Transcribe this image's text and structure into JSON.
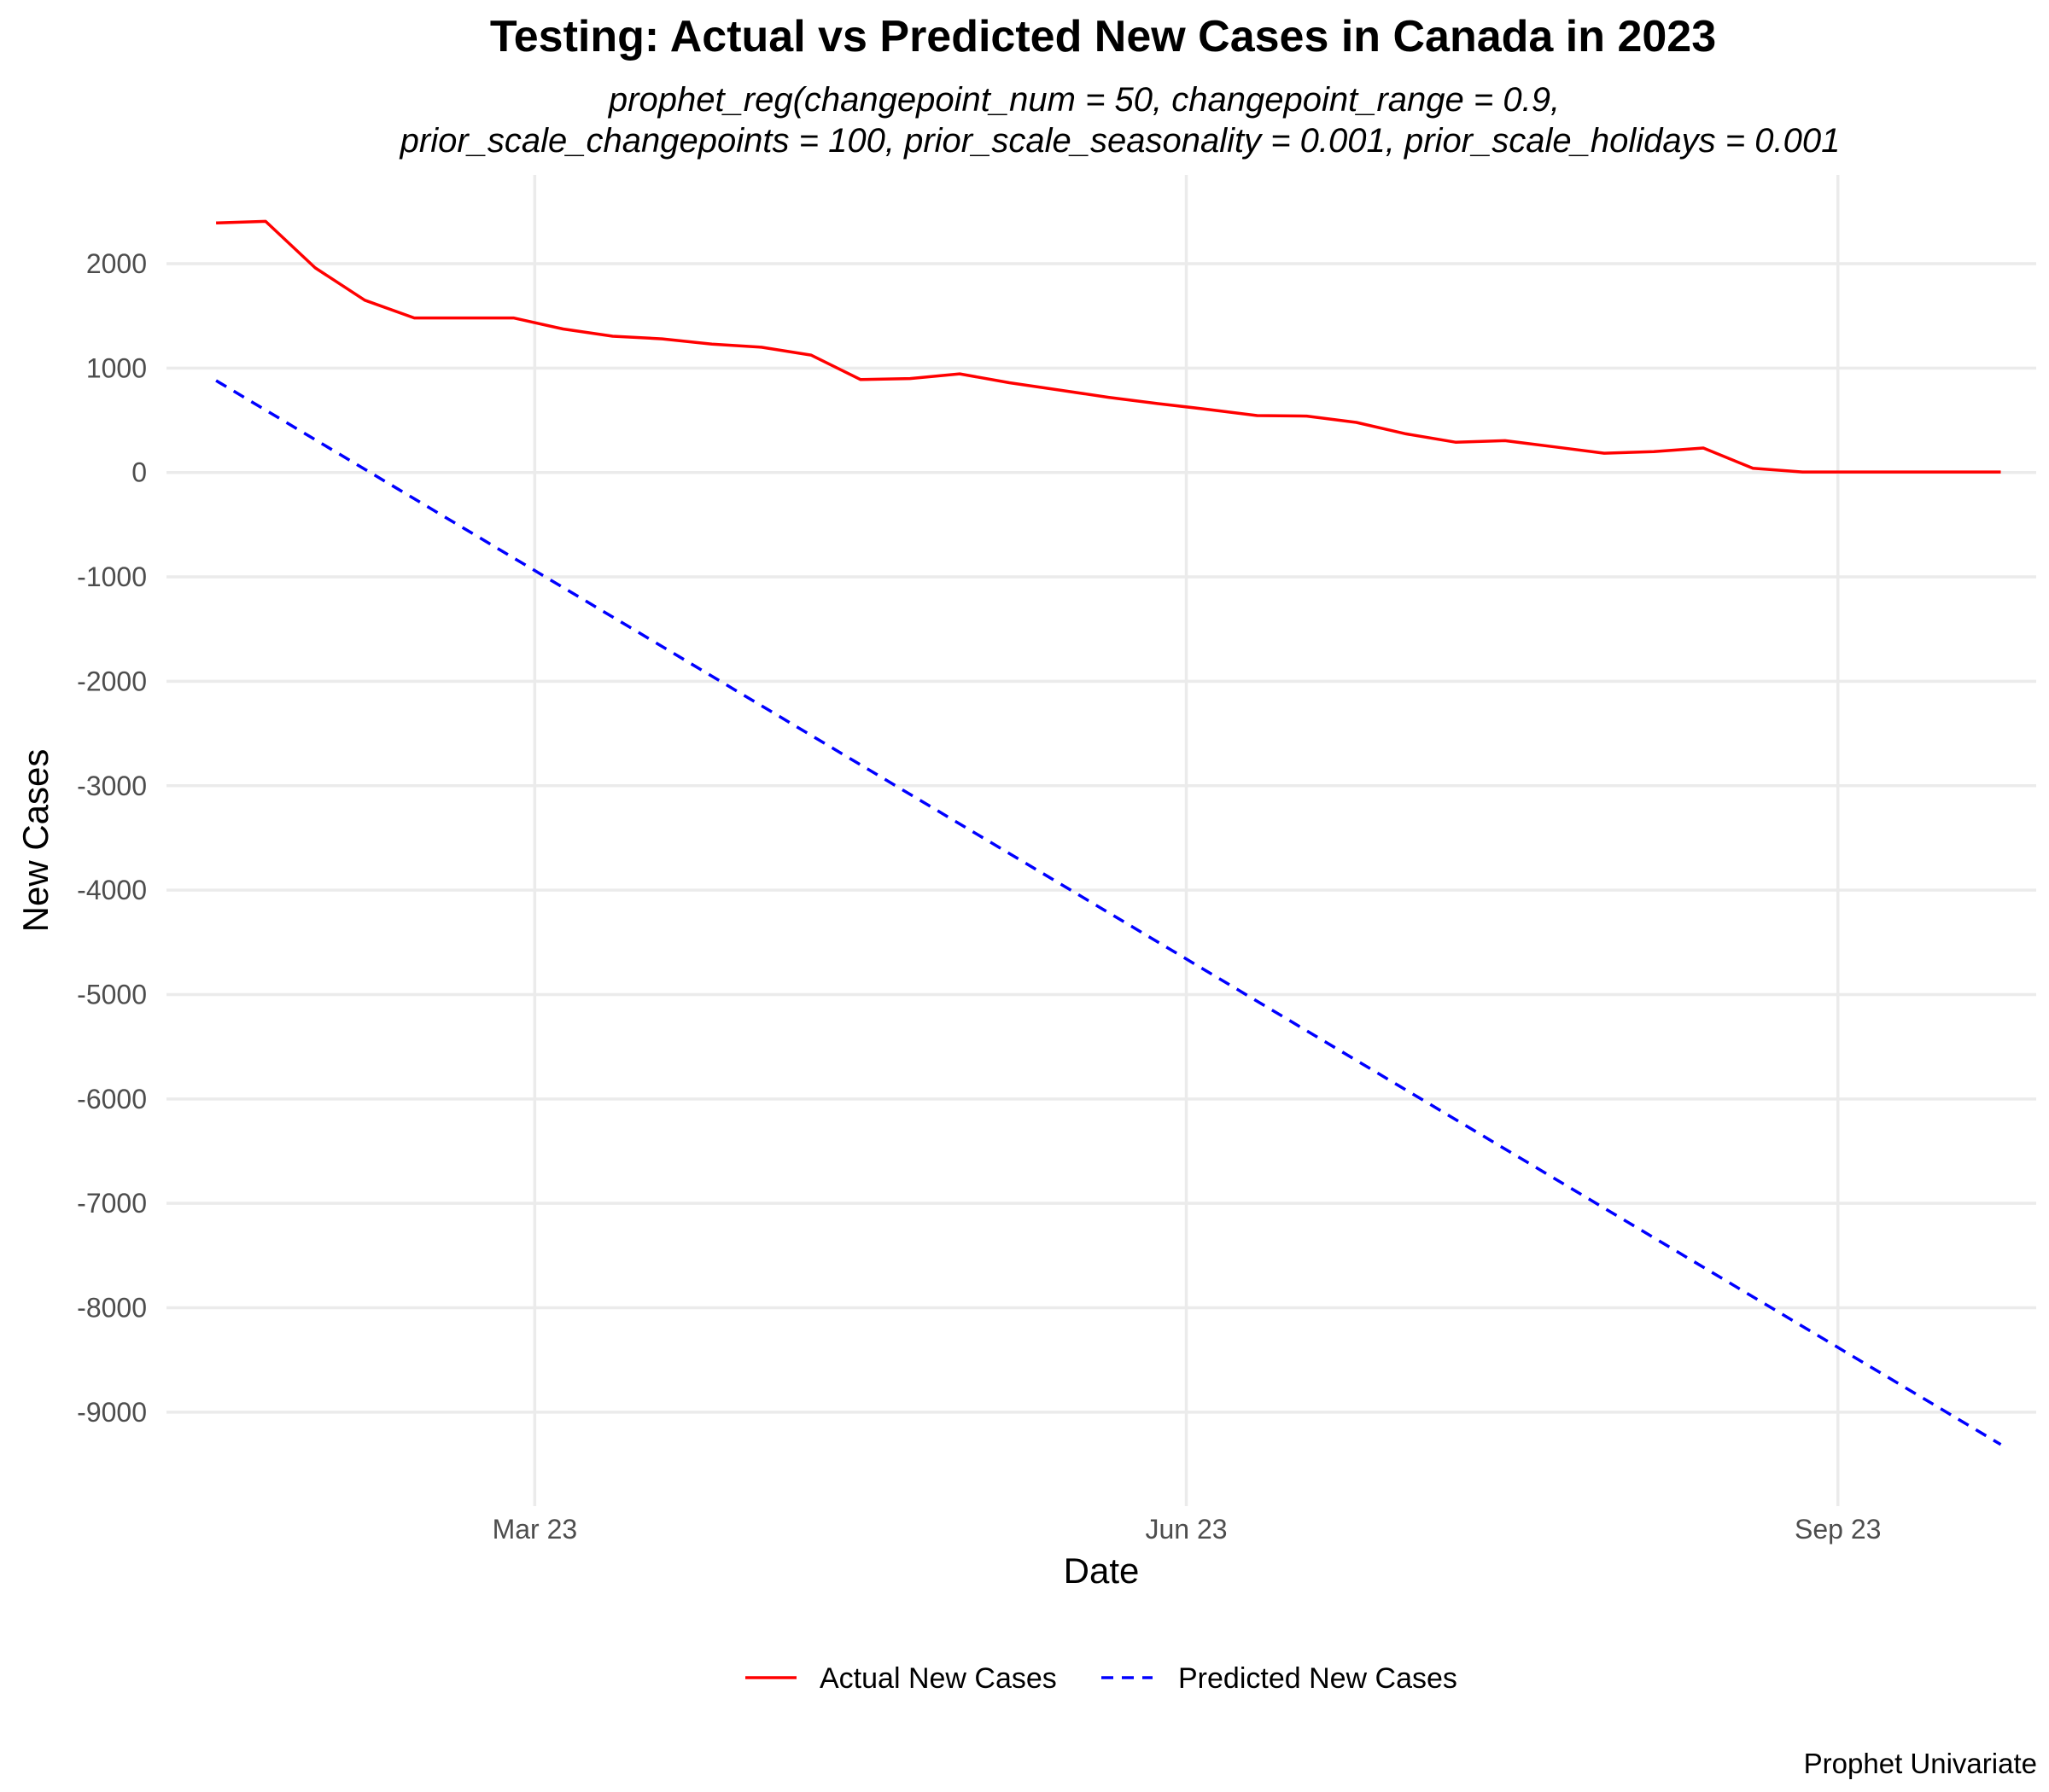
{
  "chart_data": {
    "type": "line",
    "title": "Testing: Actual vs Predicted New Cases in Canada in 2023",
    "subtitle_lines": [
      "prophet_reg(changepoint_num = 50, changepoint_range = 0.9,",
      "prior_scale_changepoints = 100, prior_scale_seasonality = 0.001, prior_scale_holidays = 0.001"
    ],
    "xlabel": "Date",
    "ylabel": "New Cases",
    "caption": "Prophet Univariate",
    "xlim": [
      "2023-01-08",
      "2023-09-29"
    ],
    "ylim": [
      -9900,
      2850
    ],
    "x_ticks": [
      {
        "date": "2023-03-01",
        "label": "Mar 23"
      },
      {
        "date": "2023-06-01",
        "label": "Jun 23"
      },
      {
        "date": "2023-09-01",
        "label": "Sep 23"
      }
    ],
    "y_ticks": [
      2000,
      1000,
      0,
      -1000,
      -2000,
      -3000,
      -4000,
      -5000,
      -6000,
      -7000,
      -8000,
      -9000
    ],
    "grid": true,
    "legend_position": "bottom",
    "series": [
      {
        "name": "Actual New Cases",
        "color": "#ff0000",
        "dash": "solid",
        "points": [
          [
            "2023-01-15",
            2390
          ],
          [
            "2023-01-22",
            2405
          ],
          [
            "2023-01-29",
            1960
          ],
          [
            "2023-02-05",
            1650
          ],
          [
            "2023-02-12",
            1480
          ],
          [
            "2023-02-19",
            1480
          ],
          [
            "2023-02-26",
            1480
          ],
          [
            "2023-03-05",
            1375
          ],
          [
            "2023-03-12",
            1305
          ],
          [
            "2023-03-19",
            1280
          ],
          [
            "2023-03-26",
            1230
          ],
          [
            "2023-04-02",
            1200
          ],
          [
            "2023-04-09",
            1125
          ],
          [
            "2023-04-16",
            890
          ],
          [
            "2023-04-23",
            900
          ],
          [
            "2023-04-30",
            945
          ],
          [
            "2023-05-07",
            860
          ],
          [
            "2023-05-14",
            790
          ],
          [
            "2023-05-21",
            720
          ],
          [
            "2023-05-28",
            660
          ],
          [
            "2023-06-04",
            605
          ],
          [
            "2023-06-11",
            545
          ],
          [
            "2023-06-18",
            540
          ],
          [
            "2023-06-25",
            480
          ],
          [
            "2023-07-02",
            370
          ],
          [
            "2023-07-09",
            290
          ],
          [
            "2023-07-16",
            305
          ],
          [
            "2023-07-23",
            245
          ],
          [
            "2023-07-30",
            185
          ],
          [
            "2023-08-06",
            200
          ],
          [
            "2023-08-13",
            235
          ],
          [
            "2023-08-20",
            40
          ],
          [
            "2023-08-27",
            5
          ],
          [
            "2023-09-03",
            5
          ],
          [
            "2023-09-10",
            5
          ],
          [
            "2023-09-17",
            5
          ],
          [
            "2023-09-24",
            5
          ]
        ]
      },
      {
        "name": "Predicted New Cases",
        "color": "#0000ff",
        "dash": "dashed",
        "points": [
          [
            "2023-01-15",
            880
          ],
          [
            "2023-09-24",
            -9310
          ]
        ]
      }
    ]
  }
}
